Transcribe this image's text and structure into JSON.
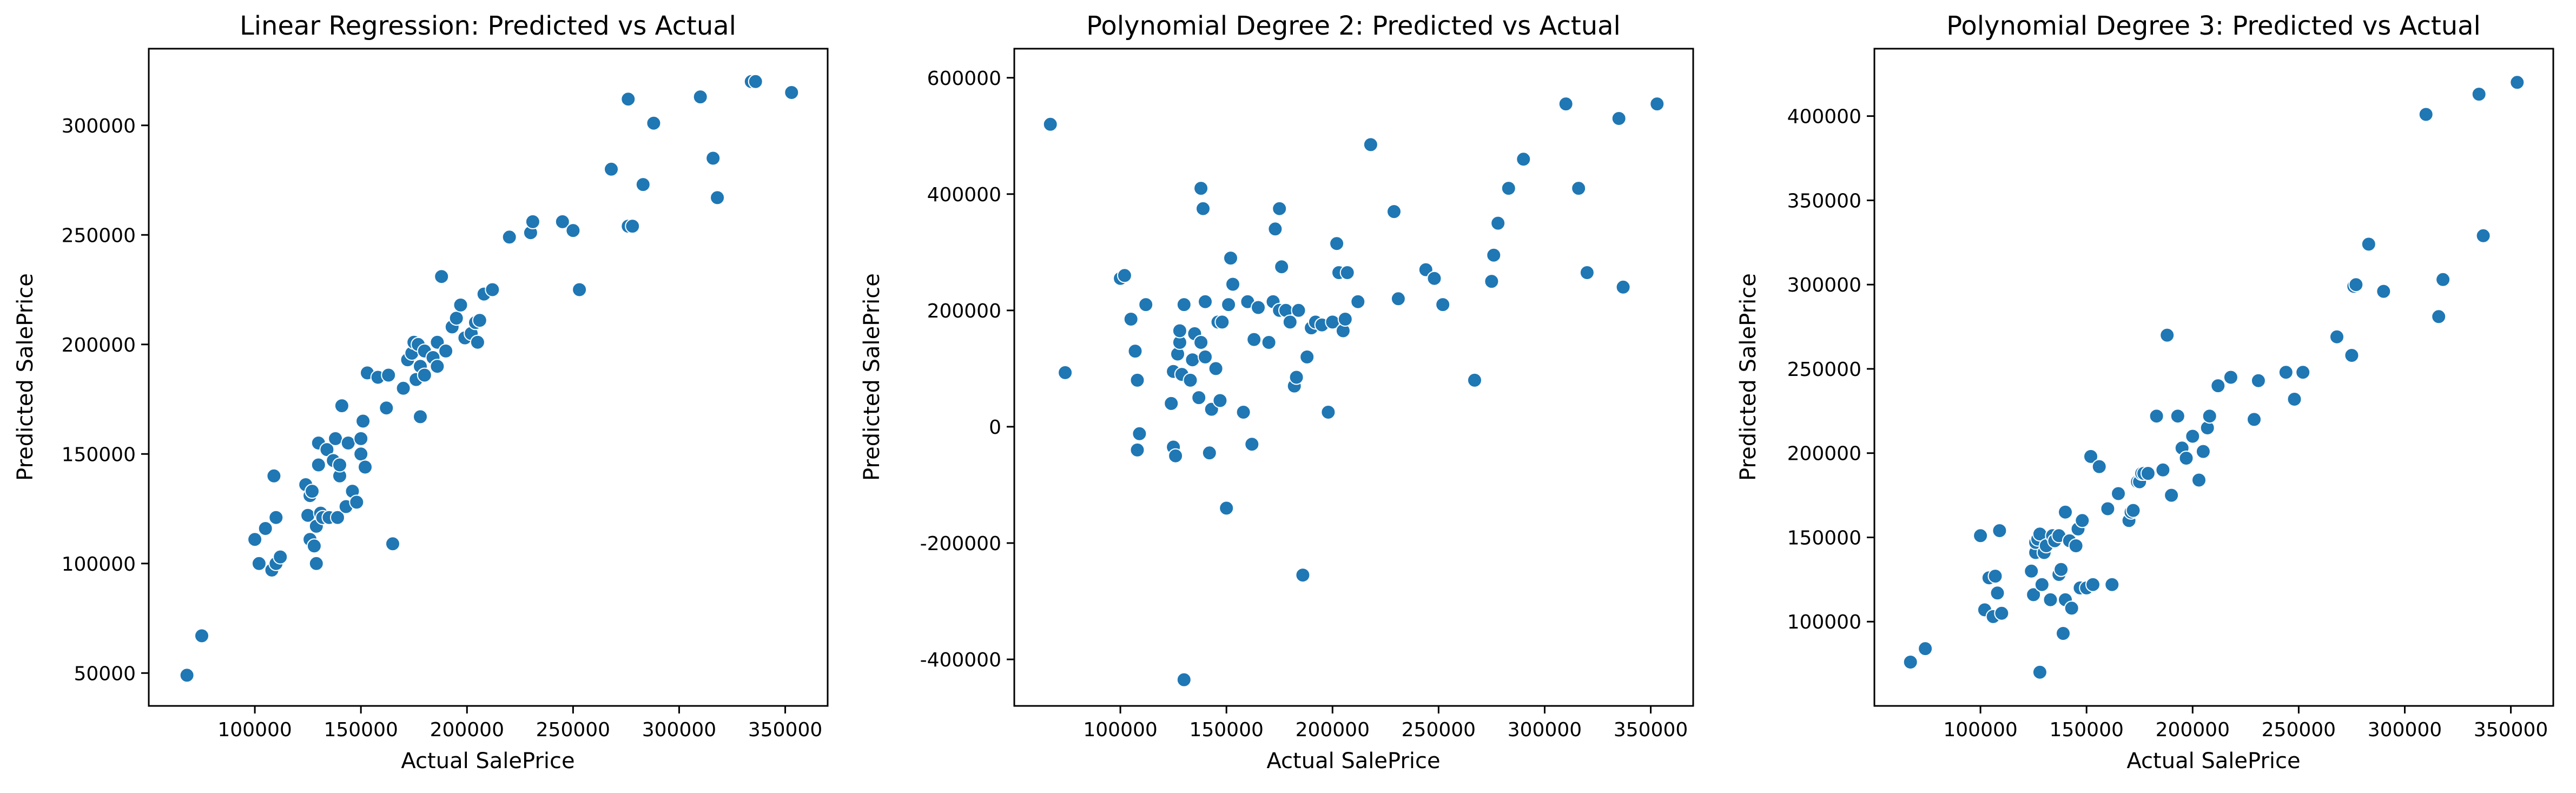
{
  "figure": {
    "point_color": "#1f77b4"
  },
  "chart_data": [
    {
      "type": "scatter",
      "title": "Linear Regression: Predicted vs Actual",
      "xlabel": "Actual SalePrice",
      "ylabel": "Predicted SalePrice",
      "xlim": [
        50000,
        370000
      ],
      "ylim": [
        35000,
        335000
      ],
      "xticks": [
        100000,
        150000,
        200000,
        250000,
        300000,
        350000
      ],
      "yticks": [
        50000,
        100000,
        150000,
        200000,
        250000,
        300000
      ],
      "points": [
        [
          68000,
          49000
        ],
        [
          75000,
          67000
        ],
        [
          100000,
          111000
        ],
        [
          102000,
          100000
        ],
        [
          105000,
          116000
        ],
        [
          108000,
          97000
        ],
        [
          109000,
          140000
        ],
        [
          110000,
          100000
        ],
        [
          110000,
          121000
        ],
        [
          112000,
          103000
        ],
        [
          124000,
          136000
        ],
        [
          125000,
          122000
        ],
        [
          126000,
          111000
        ],
        [
          126000,
          131000
        ],
        [
          127000,
          133000
        ],
        [
          128000,
          108000
        ],
        [
          129000,
          100000
        ],
        [
          129000,
          117000
        ],
        [
          130000,
          145000
        ],
        [
          130000,
          155000
        ],
        [
          131000,
          123000
        ],
        [
          132000,
          121000
        ],
        [
          134000,
          152000
        ],
        [
          135000,
          121000
        ],
        [
          137000,
          147000
        ],
        [
          138000,
          157000
        ],
        [
          139000,
          121000
        ],
        [
          140000,
          140000
        ],
        [
          140000,
          145000
        ],
        [
          141000,
          172000
        ],
        [
          143000,
          126000
        ],
        [
          144000,
          155000
        ],
        [
          146000,
          133000
        ],
        [
          148000,
          128000
        ],
        [
          150000,
          150000
        ],
        [
          150000,
          157000
        ],
        [
          151000,
          165000
        ],
        [
          152000,
          144000
        ],
        [
          153000,
          187000
        ],
        [
          158000,
          185000
        ],
        [
          162000,
          171000
        ],
        [
          163000,
          186000
        ],
        [
          165000,
          109000
        ],
        [
          170000,
          180000
        ],
        [
          172000,
          193000
        ],
        [
          174000,
          196000
        ],
        [
          175000,
          201000
        ],
        [
          176000,
          184000
        ],
        [
          177000,
          200000
        ],
        [
          178000,
          190000
        ],
        [
          178000,
          167000
        ],
        [
          180000,
          186000
        ],
        [
          180000,
          197000
        ],
        [
          184000,
          194000
        ],
        [
          186000,
          190000
        ],
        [
          186000,
          201000
        ],
        [
          188000,
          231000
        ],
        [
          190000,
          197000
        ],
        [
          193000,
          208000
        ],
        [
          195000,
          212000
        ],
        [
          197000,
          218000
        ],
        [
          199000,
          203000
        ],
        [
          202000,
          205000
        ],
        [
          204000,
          210000
        ],
        [
          205000,
          201000
        ],
        [
          206000,
          211000
        ],
        [
          208000,
          223000
        ],
        [
          212000,
          225000
        ],
        [
          220000,
          249000
        ],
        [
          230000,
          251000
        ],
        [
          231000,
          256000
        ],
        [
          245000,
          256000
        ],
        [
          250000,
          252000
        ],
        [
          253000,
          225000
        ],
        [
          268000,
          280000
        ],
        [
          276000,
          254000
        ],
        [
          276000,
          312000
        ],
        [
          278000,
          254000
        ],
        [
          283000,
          273000
        ],
        [
          288000,
          301000
        ],
        [
          310000,
          313000
        ],
        [
          316000,
          285000
        ],
        [
          318000,
          267000
        ],
        [
          334000,
          320000
        ],
        [
          336000,
          320000
        ],
        [
          353000,
          315000
        ]
      ]
    },
    {
      "type": "scatter",
      "title": "Polynomial Degree 2: Predicted vs Actual",
      "xlabel": "Actual SalePrice",
      "ylabel": "Predicted SalePrice",
      "xlim": [
        50000,
        370000
      ],
      "ylim": [
        -480000,
        650000
      ],
      "xticks": [
        100000,
        150000,
        200000,
        250000,
        300000,
        350000
      ],
      "yticks": [
        -400000,
        -200000,
        0,
        200000,
        400000,
        600000
      ],
      "points": [
        [
          67000,
          520000
        ],
        [
          74000,
          93000
        ],
        [
          100000,
          255000
        ],
        [
          102000,
          260000
        ],
        [
          105000,
          185000
        ],
        [
          107000,
          130000
        ],
        [
          108000,
          80000
        ],
        [
          108000,
          -40000
        ],
        [
          109000,
          -12000
        ],
        [
          112000,
          210000
        ],
        [
          124000,
          40000
        ],
        [
          125000,
          95000
        ],
        [
          125000,
          -35000
        ],
        [
          126000,
          -50000
        ],
        [
          127000,
          125000
        ],
        [
          128000,
          145000
        ],
        [
          128000,
          165000
        ],
        [
          129000,
          90000
        ],
        [
          130000,
          210000
        ],
        [
          130000,
          -435000
        ],
        [
          133000,
          80000
        ],
        [
          134000,
          115000
        ],
        [
          135000,
          160000
        ],
        [
          137000,
          50000
        ],
        [
          138000,
          145000
        ],
        [
          138000,
          410000
        ],
        [
          139000,
          375000
        ],
        [
          140000,
          215000
        ],
        [
          140000,
          120000
        ],
        [
          142000,
          -45000
        ],
        [
          143000,
          30000
        ],
        [
          145000,
          100000
        ],
        [
          146000,
          180000
        ],
        [
          147000,
          45000
        ],
        [
          148000,
          180000
        ],
        [
          150000,
          -140000
        ],
        [
          151000,
          210000
        ],
        [
          152000,
          290000
        ],
        [
          153000,
          245000
        ],
        [
          158000,
          25000
        ],
        [
          160000,
          215000
        ],
        [
          162000,
          -30000
        ],
        [
          163000,
          150000
        ],
        [
          165000,
          205000
        ],
        [
          170000,
          145000
        ],
        [
          172000,
          215000
        ],
        [
          173000,
          340000
        ],
        [
          175000,
          200000
        ],
        [
          175000,
          375000
        ],
        [
          176000,
          275000
        ],
        [
          178000,
          200000
        ],
        [
          180000,
          180000
        ],
        [
          182000,
          70000
        ],
        [
          183000,
          85000
        ],
        [
          184000,
          200000
        ],
        [
          186000,
          -255000
        ],
        [
          188000,
          120000
        ],
        [
          190000,
          170000
        ],
        [
          192000,
          180000
        ],
        [
          195000,
          175000
        ],
        [
          198000,
          25000
        ],
        [
          200000,
          180000
        ],
        [
          202000,
          315000
        ],
        [
          203000,
          265000
        ],
        [
          205000,
          165000
        ],
        [
          206000,
          185000
        ],
        [
          207000,
          265000
        ],
        [
          212000,
          215000
        ],
        [
          218000,
          485000
        ],
        [
          229000,
          370000
        ],
        [
          231000,
          220000
        ],
        [
          244000,
          270000
        ],
        [
          248000,
          255000
        ],
        [
          252000,
          210000
        ],
        [
          267000,
          80000
        ],
        [
          275000,
          250000
        ],
        [
          276000,
          295000
        ],
        [
          278000,
          350000
        ],
        [
          283000,
          410000
        ],
        [
          290000,
          460000
        ],
        [
          310000,
          555000
        ],
        [
          316000,
          410000
        ],
        [
          320000,
          265000
        ],
        [
          335000,
          530000
        ],
        [
          337000,
          240000
        ],
        [
          353000,
          555000
        ]
      ]
    },
    {
      "type": "scatter",
      "title": "Polynomial Degree 3: Predicted vs Actual",
      "xlabel": "Actual SalePrice",
      "ylabel": "Predicted SalePrice",
      "xlim": [
        50000,
        370000
      ],
      "ylim": [
        50000,
        440000
      ],
      "xticks": [
        100000,
        150000,
        200000,
        250000,
        300000,
        350000
      ],
      "yticks": [
        100000,
        150000,
        200000,
        250000,
        300000,
        350000,
        400000
      ],
      "points": [
        [
          67000,
          76000
        ],
        [
          74000,
          84000
        ],
        [
          100000,
          151000
        ],
        [
          102000,
          107000
        ],
        [
          104000,
          126000
        ],
        [
          106000,
          103000
        ],
        [
          107000,
          127000
        ],
        [
          108000,
          117000
        ],
        [
          109000,
          154000
        ],
        [
          110000,
          105000
        ],
        [
          124000,
          130000
        ],
        [
          125000,
          116000
        ],
        [
          126000,
          141000
        ],
        [
          126000,
          147000
        ],
        [
          127000,
          149000
        ],
        [
          128000,
          70000
        ],
        [
          128000,
          152000
        ],
        [
          129000,
          122000
        ],
        [
          130000,
          141000
        ],
        [
          131000,
          145000
        ],
        [
          133000,
          113000
        ],
        [
          134000,
          151000
        ],
        [
          135000,
          148000
        ],
        [
          137000,
          128000
        ],
        [
          137000,
          151000
        ],
        [
          138000,
          131000
        ],
        [
          139000,
          93000
        ],
        [
          140000,
          113000
        ],
        [
          140000,
          165000
        ],
        [
          142000,
          148000
        ],
        [
          143000,
          108000
        ],
        [
          145000,
          145000
        ],
        [
          146000,
          155000
        ],
        [
          147000,
          120000
        ],
        [
          148000,
          160000
        ],
        [
          150000,
          120000
        ],
        [
          152000,
          198000
        ],
        [
          153000,
          122000
        ],
        [
          156000,
          192000
        ],
        [
          160000,
          167000
        ],
        [
          162000,
          122000
        ],
        [
          165000,
          176000
        ],
        [
          170000,
          160000
        ],
        [
          171000,
          165000
        ],
        [
          172000,
          166000
        ],
        [
          174000,
          183000
        ],
        [
          175000,
          183000
        ],
        [
          176000,
          188000
        ],
        [
          177000,
          188000
        ],
        [
          179000,
          188000
        ],
        [
          183000,
          222000
        ],
        [
          186000,
          190000
        ],
        [
          188000,
          270000
        ],
        [
          190000,
          175000
        ],
        [
          193000,
          222000
        ],
        [
          195000,
          203000
        ],
        [
          197000,
          197000
        ],
        [
          200000,
          210000
        ],
        [
          203000,
          184000
        ],
        [
          205000,
          201000
        ],
        [
          207000,
          215000
        ],
        [
          208000,
          222000
        ],
        [
          212000,
          240000
        ],
        [
          218000,
          245000
        ],
        [
          229000,
          220000
        ],
        [
          231000,
          243000
        ],
        [
          244000,
          248000
        ],
        [
          248000,
          232000
        ],
        [
          252000,
          248000
        ],
        [
          268000,
          269000
        ],
        [
          275000,
          258000
        ],
        [
          276000,
          299000
        ],
        [
          277000,
          300000
        ],
        [
          283000,
          324000
        ],
        [
          290000,
          296000
        ],
        [
          310000,
          401000
        ],
        [
          316000,
          281000
        ],
        [
          318000,
          303000
        ],
        [
          335000,
          413000
        ],
        [
          337000,
          329000
        ],
        [
          353000,
          420000
        ]
      ]
    }
  ]
}
